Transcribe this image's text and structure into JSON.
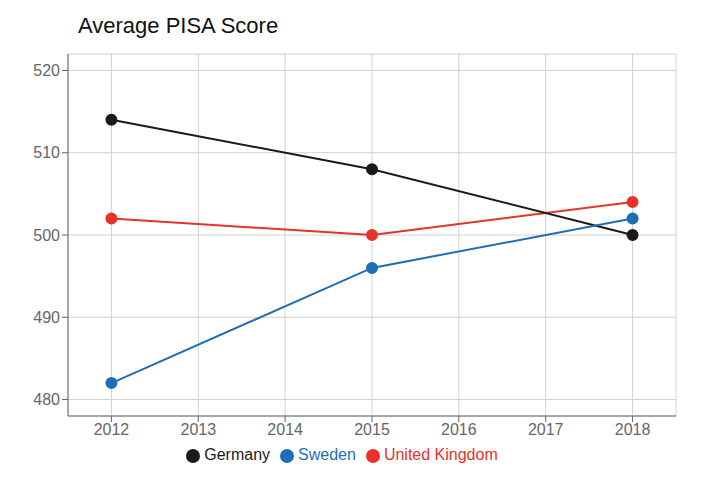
{
  "chart_data": {
    "type": "line",
    "title": "Average PISA Score",
    "x": [
      2012,
      2015,
      2018
    ],
    "series": [
      {
        "name": "United Kingdom",
        "color": "#e8312a",
        "values": [
          502,
          500,
          504
        ]
      },
      {
        "name": "Germany",
        "color": "#1a1a1a",
        "values": [
          514,
          508,
          500
        ]
      },
      {
        "name": "Sweden",
        "color": "#1f6eb5",
        "values": [
          482,
          496,
          502
        ]
      }
    ],
    "xlim": [
      2011.5,
      2018.5
    ],
    "xticks": [
      2012,
      2013,
      2014,
      2015,
      2016,
      2017,
      2018
    ],
    "ylim": [
      478,
      522
    ],
    "yticks": [
      480,
      490,
      500,
      510,
      520
    ],
    "grid": true,
    "legend": "bottom",
    "marker": "circle"
  }
}
